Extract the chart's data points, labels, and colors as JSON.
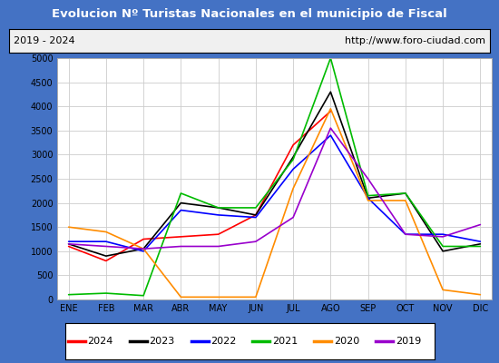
{
  "title": "Evolucion Nº Turistas Nacionales en el municipio de Fiscal",
  "subtitle_left": "2019 - 2024",
  "subtitle_right": "http://www.foro-ciudad.com",
  "months": [
    "ENE",
    "FEB",
    "MAR",
    "ABR",
    "MAY",
    "JUN",
    "JUL",
    "AGO",
    "SEP",
    "OCT",
    "NOV",
    "DIC"
  ],
  "ylim": [
    0,
    5000
  ],
  "yticks": [
    0,
    500,
    1000,
    1500,
    2000,
    2500,
    3000,
    3500,
    4000,
    4500,
    5000
  ],
  "series": {
    "2024": {
      "color": "#ff0000",
      "data": [
        1100,
        800,
        1250,
        1300,
        1350,
        1750,
        3200,
        3900,
        null,
        null,
        null,
        null
      ]
    },
    "2023": {
      "color": "#000000",
      "data": [
        1150,
        900,
        1050,
        2000,
        1900,
        1750,
        2950,
        4300,
        2100,
        2200,
        1000,
        1150
      ]
    },
    "2022": {
      "color": "#0000ff",
      "data": [
        1200,
        1200,
        1000,
        1850,
        1750,
        1700,
        2700,
        3400,
        2100,
        1350,
        1350,
        1200
      ]
    },
    "2021": {
      "color": "#00bb00",
      "data": [
        100,
        130,
        80,
        2200,
        1900,
        1900,
        2900,
        5000,
        2150,
        2200,
        1100,
        1100
      ]
    },
    "2020": {
      "color": "#ff8c00",
      "data": [
        1500,
        1400,
        1050,
        50,
        50,
        50,
        2300,
        3950,
        2050,
        2050,
        200,
        100
      ]
    },
    "2019": {
      "color": "#9900cc",
      "data": [
        1150,
        1100,
        1050,
        1100,
        1100,
        1200,
        1700,
        3550,
        2500,
        1350,
        1300,
        1550
      ]
    }
  },
  "legend_order": [
    "2024",
    "2023",
    "2022",
    "2021",
    "2020",
    "2019"
  ],
  "title_bg_color": "#4472c4",
  "title_text_color": "#ffffff",
  "plot_bg_color": "#ffffff",
  "grid_color": "#cccccc",
  "outer_bg_color": "#4472c4"
}
